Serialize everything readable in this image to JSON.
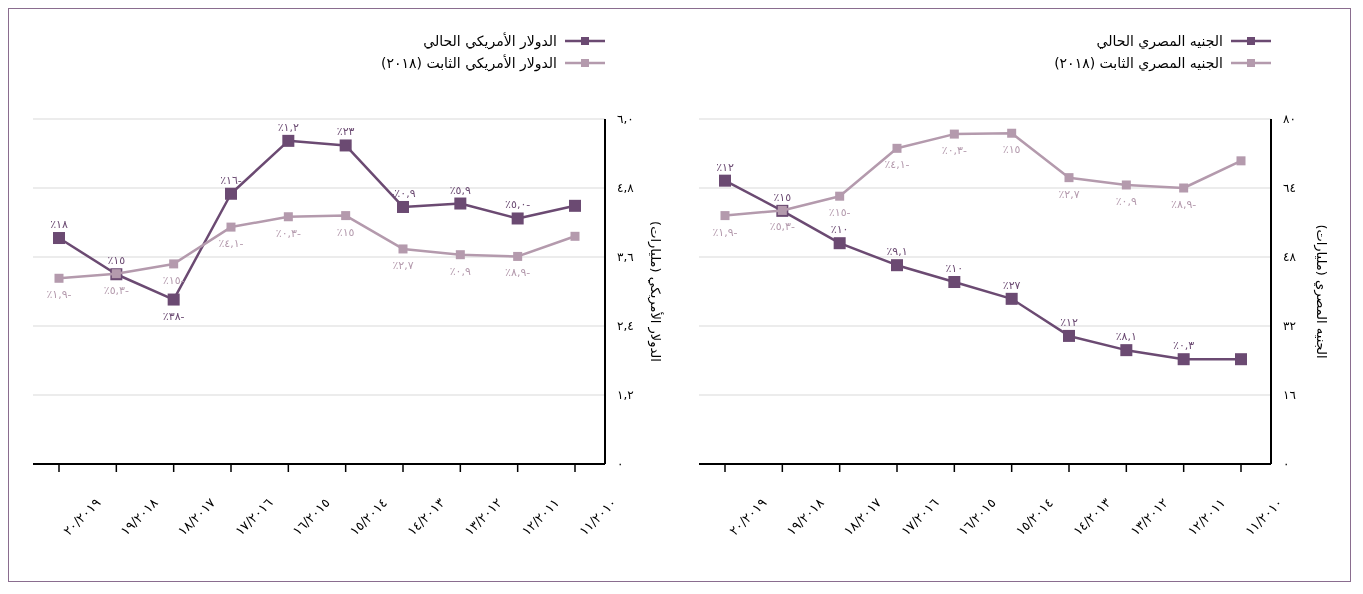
{
  "chart_data": [
    {
      "type": "line",
      "ylabel": "الجنيه المصري (مليارات)",
      "categories": [
        "٢٠/٢٠١٩",
        "١٩/٢٠١٨",
        "١٨/٢٠١٧",
        "١٧/٢٠١٦",
        "١٦/٢٠١٥",
        "١٥/٢٠١٤",
        "١٤/٢٠١٣",
        "١٣/٢٠١٢",
        "١٢/٢٠١١",
        "١١/٢٠١٠"
      ],
      "ylim": [
        0,
        80
      ],
      "yticks": [
        {
          "value": 0,
          "label": "٠"
        },
        {
          "value": 16,
          "label": "١٦"
        },
        {
          "value": 32,
          "label": "٣٢"
        },
        {
          "value": 48,
          "label": "٤٨"
        },
        {
          "value": 64,
          "label": "٦٤"
        },
        {
          "value": 80,
          "label": "٨٠"
        }
      ],
      "grid": "y",
      "legend": "top",
      "marker": "square",
      "line_style": "solid",
      "series": [
        {
          "name": "الجنيه المصري الحالي",
          "color": "#6b4a72",
          "values": [
            65.7,
            58.7,
            51.2,
            46.1,
            42.2,
            38.3,
            29.7,
            26.4,
            24.3,
            24.3
          ]
        },
        {
          "name": "الجنيه المصري الثابت (٢٠١٨)",
          "color": "#b49aad",
          "values": [
            57.6,
            58.8,
            62.1,
            73.2,
            76.5,
            76.7,
            66.4,
            64.7,
            64.0,
            70.3
          ]
        }
      ],
      "annotations": [
        "٪١٢",
        "٪١٥",
        "٪١٠",
        "٪٩,١",
        "٪١٠",
        "٪٢٧",
        "٪١٢",
        "٪٨,١",
        "٪٠,٣",
        "٪١,٩-",
        "٪٥,٣-",
        "٪١٥-",
        "٪٤,١-",
        "٪٠,٣-",
        "٪١٥",
        "٪٢,٧",
        "٪٠,٩",
        "٪٨,٩-"
      ]
    },
    {
      "type": "line",
      "ylabel": "الدولار الأمريكي (مليارات)",
      "categories": [
        "٢٠/٢٠١٩",
        "١٩/٢٠١٨",
        "١٨/٢٠١٧",
        "١٧/٢٠١٦",
        "١٦/٢٠١٥",
        "١٥/٢٠١٤",
        "١٤/٢٠١٣",
        "١٣/٢٠١٢",
        "١٢/٢٠١١",
        "١١/٢٠١٠"
      ],
      "ylim": [
        0,
        6
      ],
      "yticks": [
        {
          "value": 0,
          "label": "٠"
        },
        {
          "value": 1.2,
          "label": "١,٢"
        },
        {
          "value": 2.4,
          "label": "٢,٤"
        },
        {
          "value": 3.6,
          "label": "٣,٦"
        },
        {
          "value": 4.8,
          "label": "٤,٨"
        },
        {
          "value": 6,
          "label": "٦,٠"
        }
      ],
      "grid": "y",
      "legend": "top",
      "marker": "square",
      "line_style": "solid",
      "series": [
        {
          "name": "الدولار الأمريكي الحالي",
          "color": "#6b4a72",
          "values": [
            3.93,
            3.3,
            2.86,
            4.7,
            5.62,
            5.54,
            4.47,
            4.53,
            4.27,
            4.49
          ]
        },
        {
          "name": "الدولار الأمريكي الثابت (٢٠١٨)",
          "color": "#b49aad",
          "values": [
            3.23,
            3.31,
            3.48,
            4.12,
            4.3,
            4.32,
            3.74,
            3.64,
            3.61,
            3.96
          ]
        }
      ],
      "annotations": [
        "٪١٨",
        "٪١٥",
        "٪٣٨-",
        "٪١٦-",
        "٪١,٢",
        "٪٢٣",
        "-٪٠,٩",
        "٪٥,٩",
        "٪٥,٠-",
        "٪١,٩-",
        "٪٥,٣-",
        "٪١٥-",
        "٪٤,١-",
        "٪٠,٣-",
        "٪١٥",
        "٪٢,٧",
        "٪٠,٩",
        "٪٨,٩-"
      ]
    }
  ]
}
